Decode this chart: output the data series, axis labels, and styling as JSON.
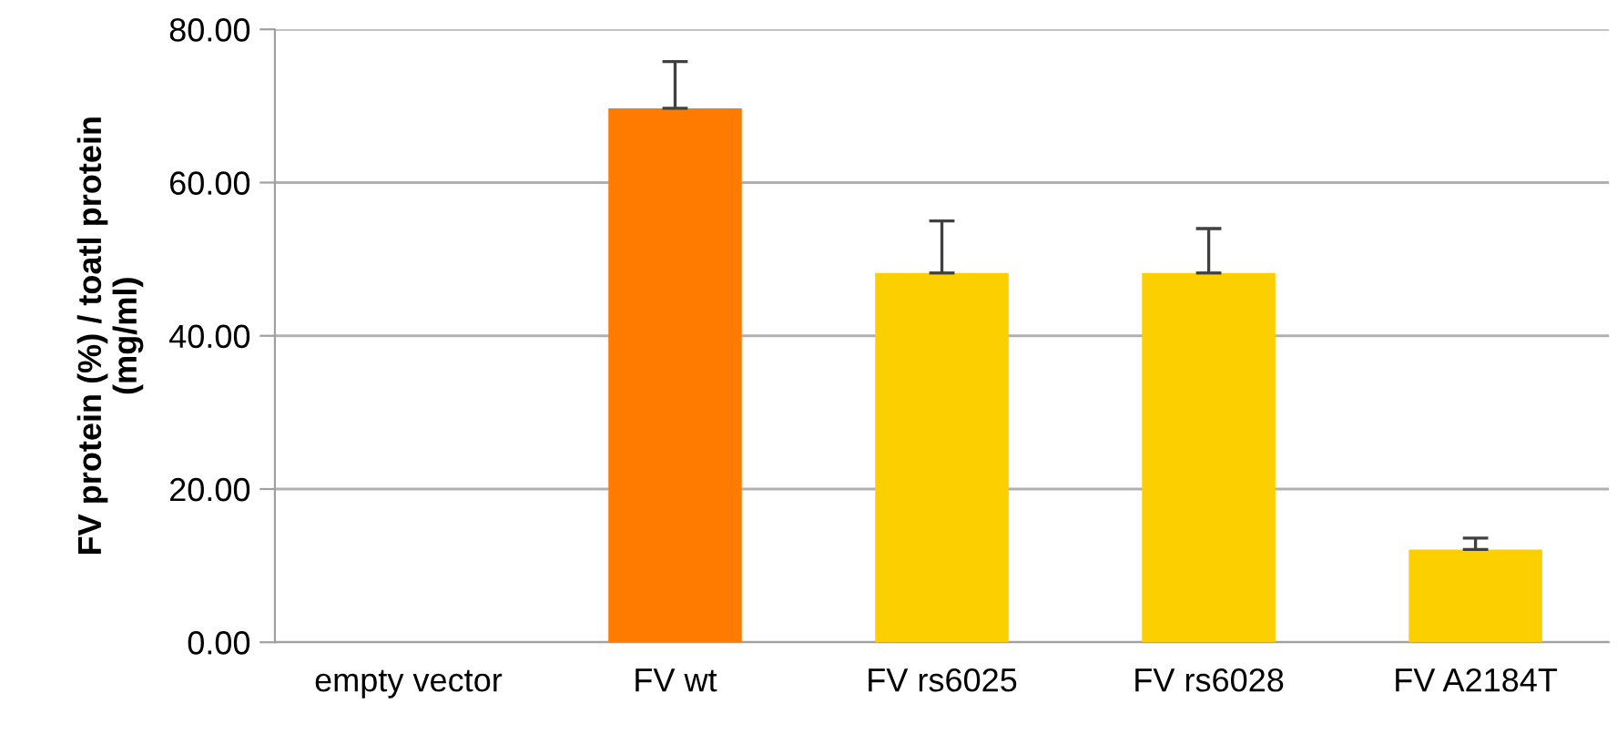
{
  "chart_data": {
    "type": "bar",
    "ylabel": "FV protein (%) / toatl protein\n(mg/ml)",
    "categories": [
      "empty vector",
      "FV wt",
      "FV rs6025",
      "FV rs6028",
      "FV A2184T"
    ],
    "values": [
      0,
      69.7,
      48.2,
      48.2,
      12.1
    ],
    "colors": [
      "#fbcf00",
      "#ff7b00",
      "#fbcf00",
      "#fbcf00",
      "#fbcf00"
    ],
    "errors": [
      null,
      [
        69.7,
        75.8
      ],
      [
        48.2,
        55.0
      ],
      [
        48.2,
        54.0
      ],
      [
        12.1,
        13.6
      ]
    ],
    "ylim": [
      0,
      80
    ],
    "yticks": [
      {
        "value": 0,
        "label": "0.00"
      },
      {
        "value": 20,
        "label": "20.00"
      },
      {
        "value": 40,
        "label": "40.00"
      },
      {
        "value": 60,
        "label": "60.00"
      },
      {
        "value": 80,
        "label": "80.00"
      }
    ],
    "grid": "y"
  }
}
